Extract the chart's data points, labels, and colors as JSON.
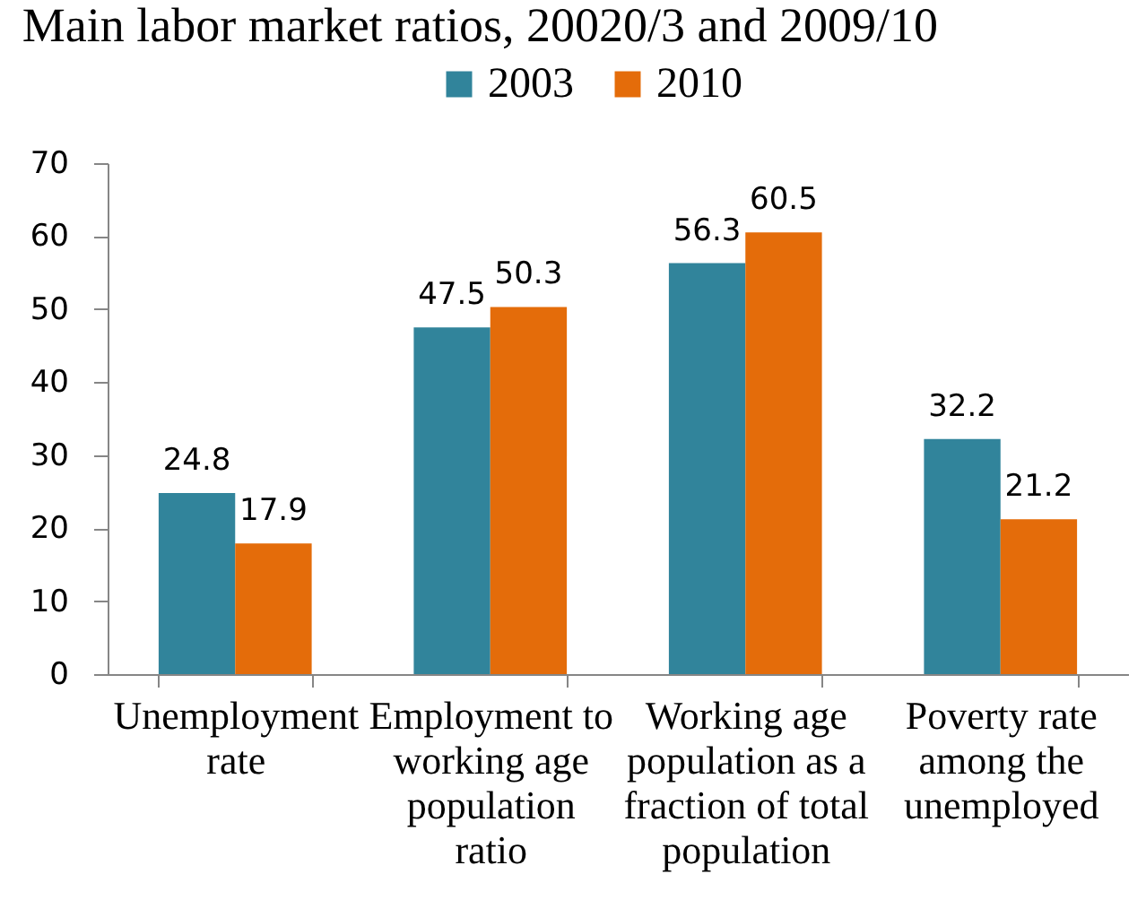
{
  "chart_data": {
    "type": "bar",
    "title": "Main labor market ratios, 20020/3 and 2009/10",
    "categories": [
      "Unemployment rate",
      "Employment to working age population ratio",
      "Working age population as a fraction of total population",
      "Poverty rate among the unemployed"
    ],
    "series": [
      {
        "name": "2003",
        "color": "#31849b",
        "values": [
          24.8,
          47.5,
          56.3,
          32.2
        ]
      },
      {
        "name": "2010",
        "color": "#e46c0a",
        "values": [
          17.9,
          50.3,
          60.5,
          21.2
        ]
      }
    ],
    "ylim": [
      0,
      70
    ],
    "yticks": [
      0,
      10,
      20,
      30,
      40,
      50,
      60,
      70
    ],
    "data_labels": true,
    "legend": "top"
  }
}
